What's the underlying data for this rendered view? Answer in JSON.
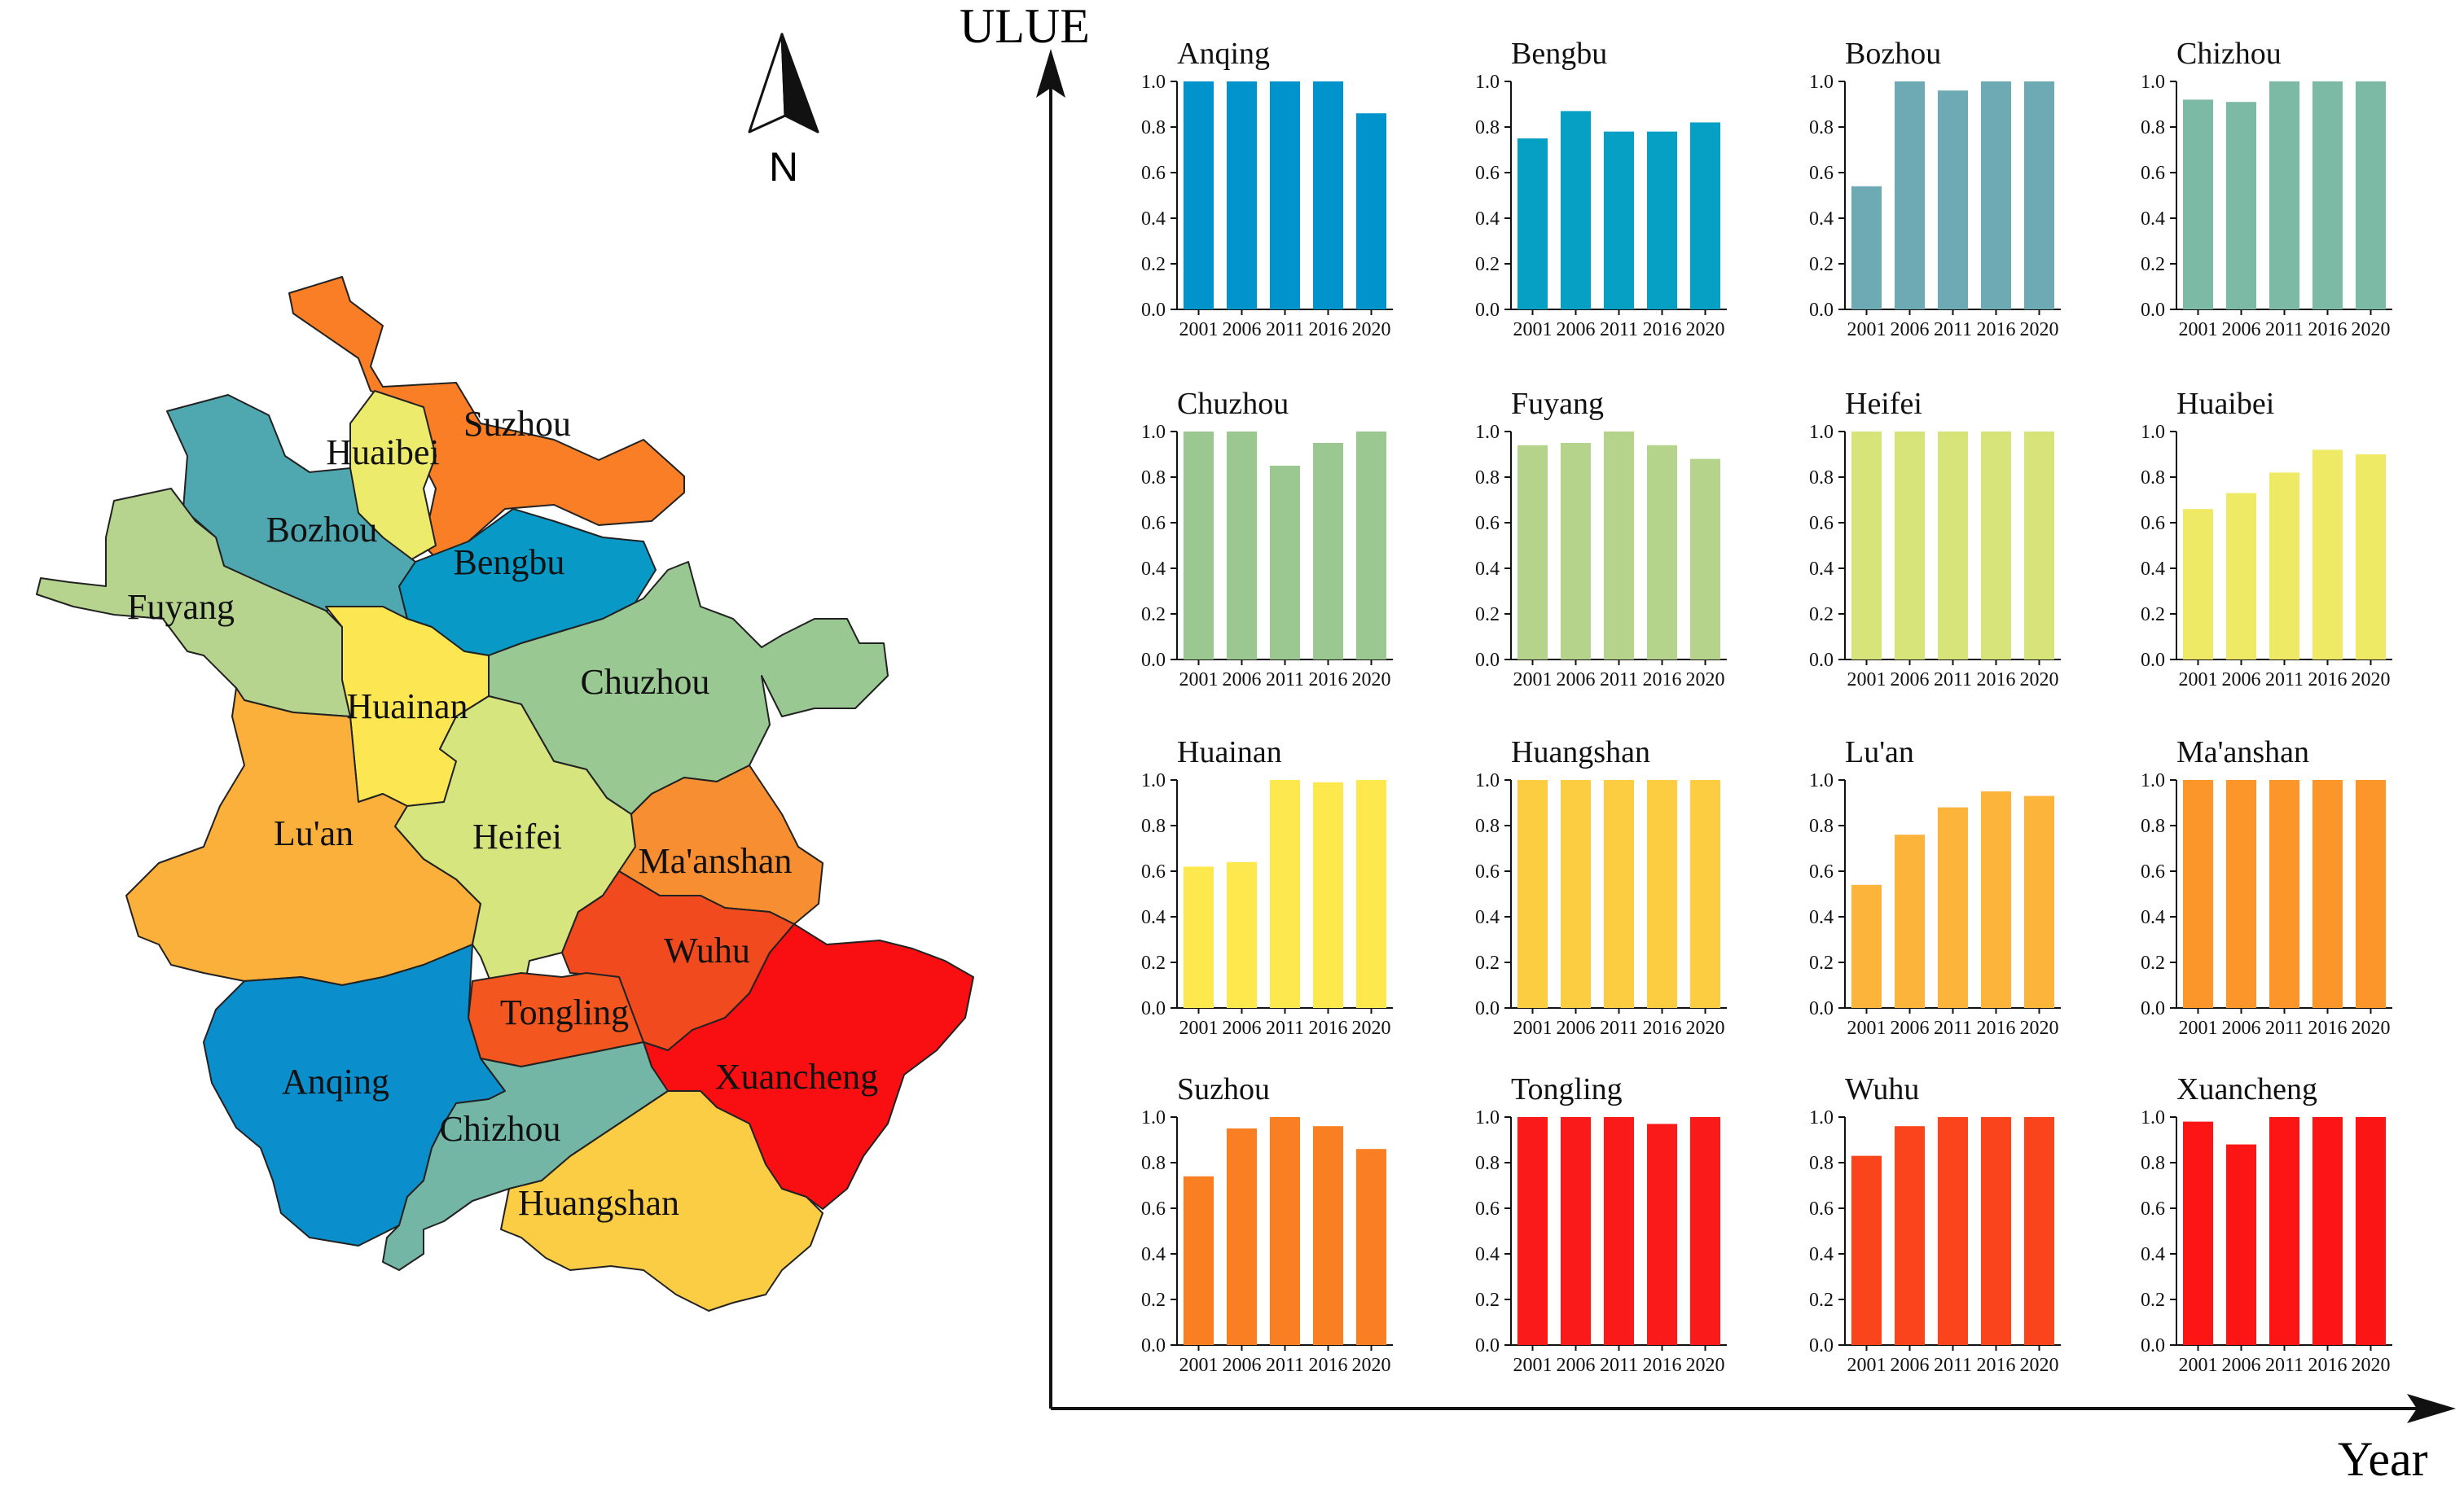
{
  "map": {
    "compass_label": "N",
    "regions": [
      {
        "name": "Suzhou",
        "color": "#F97E26"
      },
      {
        "name": "Huaibei",
        "color": "#EDEB6B"
      },
      {
        "name": "Bozhou",
        "color": "#4FA8B0"
      },
      {
        "name": "Bengbu",
        "color": "#0899C6"
      },
      {
        "name": "Fuyang",
        "color": "#B7D48E"
      },
      {
        "name": "Chuzhou",
        "color": "#9AC892"
      },
      {
        "name": "Huainan",
        "color": "#FCE753"
      },
      {
        "name": "Lu'an",
        "color": "#FBB03B"
      },
      {
        "name": "Heifei",
        "color": "#D6E57D"
      },
      {
        "name": "Ma'anshan",
        "color": "#F78E31"
      },
      {
        "name": "Wuhu",
        "color": "#F24A1F"
      },
      {
        "name": "Tongling",
        "color": "#F3561E"
      },
      {
        "name": "Xuancheng",
        "color": "#F90E12"
      },
      {
        "name": "Anqing",
        "color": "#0B8FCC"
      },
      {
        "name": "Chizhou",
        "color": "#74B6A6"
      },
      {
        "name": "Huangshan",
        "color": "#FBCD44"
      }
    ]
  },
  "axes": {
    "ylabel": "ULUE",
    "xlabel": "Year"
  },
  "chart_data": [
    {
      "type": "bar",
      "title": "Anqing",
      "color": "#0093CC",
      "categories": [
        "2001",
        "2006",
        "2011",
        "2016",
        "2020"
      ],
      "values": [
        1.0,
        1.0,
        1.0,
        1.0,
        0.86
      ],
      "ylim": [
        0,
        1.0
      ],
      "yticks": [
        "0.0",
        "0.2",
        "0.4",
        "0.6",
        "0.8",
        "1.0"
      ]
    },
    {
      "type": "bar",
      "title": "Bengbu",
      "color": "#05A0C4",
      "categories": [
        "2001",
        "2006",
        "2011",
        "2016",
        "2020"
      ],
      "values": [
        0.75,
        0.87,
        0.78,
        0.78,
        0.82
      ],
      "ylim": [
        0,
        1.0
      ],
      "yticks": [
        "0.0",
        "0.2",
        "0.4",
        "0.6",
        "0.8",
        "1.0"
      ]
    },
    {
      "type": "bar",
      "title": "Bozhou",
      "color": "#6EAAB3",
      "categories": [
        "2001",
        "2006",
        "2011",
        "2016",
        "2020"
      ],
      "values": [
        0.54,
        1.0,
        0.96,
        1.0,
        1.0
      ],
      "ylim": [
        0,
        1.0
      ],
      "yticks": [
        "0.0",
        "0.2",
        "0.4",
        "0.6",
        "0.8",
        "1.0"
      ]
    },
    {
      "type": "bar",
      "title": "Chizhou",
      "color": "#7DBAA5",
      "categories": [
        "2001",
        "2006",
        "2011",
        "2016",
        "2020"
      ],
      "values": [
        0.92,
        0.91,
        1.0,
        1.0,
        1.0
      ],
      "ylim": [
        0,
        1.0
      ],
      "yticks": [
        "0.0",
        "0.2",
        "0.4",
        "0.6",
        "0.8",
        "1.0"
      ]
    },
    {
      "type": "bar",
      "title": "Chuzhou",
      "color": "#9BC790",
      "categories": [
        "2001",
        "2006",
        "2011",
        "2016",
        "2020"
      ],
      "values": [
        1.0,
        1.0,
        0.85,
        0.95,
        1.0
      ],
      "ylim": [
        0,
        1.0
      ],
      "yticks": [
        "0.0",
        "0.2",
        "0.4",
        "0.6",
        "0.8",
        "1.0"
      ]
    },
    {
      "type": "bar",
      "title": "Fuyang",
      "color": "#B5D38B",
      "categories": [
        "2001",
        "2006",
        "2011",
        "2016",
        "2020"
      ],
      "values": [
        0.94,
        0.95,
        1.0,
        0.94,
        0.88
      ],
      "ylim": [
        0,
        1.0
      ],
      "yticks": [
        "0.0",
        "0.2",
        "0.4",
        "0.6",
        "0.8",
        "1.0"
      ]
    },
    {
      "type": "bar",
      "title": "Heifei",
      "color": "#D6E47A",
      "categories": [
        "2001",
        "2006",
        "2011",
        "2016",
        "2020"
      ],
      "values": [
        1.0,
        1.0,
        1.0,
        1.0,
        1.0
      ],
      "ylim": [
        0,
        1.0
      ],
      "yticks": [
        "0.0",
        "0.2",
        "0.4",
        "0.6",
        "0.8",
        "1.0"
      ]
    },
    {
      "type": "bar",
      "title": "Huaibei",
      "color": "#EEEA66",
      "categories": [
        "2001",
        "2006",
        "2011",
        "2016",
        "2020"
      ],
      "values": [
        0.66,
        0.73,
        0.82,
        0.92,
        0.9
      ],
      "ylim": [
        0,
        1.0
      ],
      "yticks": [
        "0.0",
        "0.2",
        "0.4",
        "0.6",
        "0.8",
        "1.0"
      ]
    },
    {
      "type": "bar",
      "title": "Huainan",
      "color": "#FDE94E",
      "categories": [
        "2001",
        "2006",
        "2011",
        "2016",
        "2020"
      ],
      "values": [
        0.62,
        0.64,
        1.0,
        0.99,
        1.0
      ],
      "ylim": [
        0,
        1.0
      ],
      "yticks": [
        "0.0",
        "0.2",
        "0.4",
        "0.6",
        "0.8",
        "1.0"
      ]
    },
    {
      "type": "bar",
      "title": "Huangshan",
      "color": "#FDCD41",
      "categories": [
        "2001",
        "2006",
        "2011",
        "2016",
        "2020"
      ],
      "values": [
        1.0,
        1.0,
        1.0,
        1.0,
        1.0
      ],
      "ylim": [
        0,
        1.0
      ],
      "yticks": [
        "0.0",
        "0.2",
        "0.4",
        "0.6",
        "0.8",
        "1.0"
      ]
    },
    {
      "type": "bar",
      "title": "Lu'an",
      "color": "#FDB43A",
      "categories": [
        "2001",
        "2006",
        "2011",
        "2016",
        "2020"
      ],
      "values": [
        0.54,
        0.76,
        0.88,
        0.95,
        0.93
      ],
      "ylim": [
        0,
        1.0
      ],
      "yticks": [
        "0.0",
        "0.2",
        "0.4",
        "0.6",
        "0.8",
        "1.0"
      ]
    },
    {
      "type": "bar",
      "title": "Ma'anshan",
      "color": "#FC962B",
      "categories": [
        "2001",
        "2006",
        "2011",
        "2016",
        "2020"
      ],
      "values": [
        1.0,
        1.0,
        1.0,
        1.0,
        1.0
      ],
      "ylim": [
        0,
        1.0
      ],
      "yticks": [
        "0.0",
        "0.2",
        "0.4",
        "0.6",
        "0.8",
        "1.0"
      ]
    },
    {
      "type": "bar",
      "title": "Suzhou",
      "color": "#FA7E22",
      "categories": [
        "2001",
        "2006",
        "2011",
        "2016",
        "2020"
      ],
      "values": [
        0.74,
        0.95,
        1.0,
        0.96,
        0.86
      ],
      "ylim": [
        0,
        1.0
      ],
      "yticks": [
        "0.0",
        "0.2",
        "0.4",
        "0.6",
        "0.8",
        "1.0"
      ]
    },
    {
      "type": "bar",
      "title": "Tongling",
      "color": "#FB1A1A",
      "categories": [
        "2001",
        "2006",
        "2011",
        "2016",
        "2020"
      ],
      "values": [
        1.0,
        1.0,
        1.0,
        0.97,
        1.0
      ],
      "ylim": [
        0,
        1.0
      ],
      "yticks": [
        "0.0",
        "0.2",
        "0.4",
        "0.6",
        "0.8",
        "1.0"
      ]
    },
    {
      "type": "bar",
      "title": "Wuhu",
      "color": "#FA451C",
      "categories": [
        "2001",
        "2006",
        "2011",
        "2016",
        "2020"
      ],
      "values": [
        0.83,
        0.96,
        1.0,
        1.0,
        1.0
      ],
      "ylim": [
        0,
        1.0
      ],
      "yticks": [
        "0.0",
        "0.2",
        "0.4",
        "0.6",
        "0.8",
        "1.0"
      ]
    },
    {
      "type": "bar",
      "title": "Xuancheng",
      "color": "#FB1515",
      "categories": [
        "2001",
        "2006",
        "2011",
        "2016",
        "2020"
      ],
      "values": [
        0.98,
        0.88,
        1.0,
        1.0,
        1.0
      ],
      "ylim": [
        0,
        1.0
      ],
      "yticks": [
        "0.0",
        "0.2",
        "0.4",
        "0.6",
        "0.8",
        "1.0"
      ]
    }
  ]
}
